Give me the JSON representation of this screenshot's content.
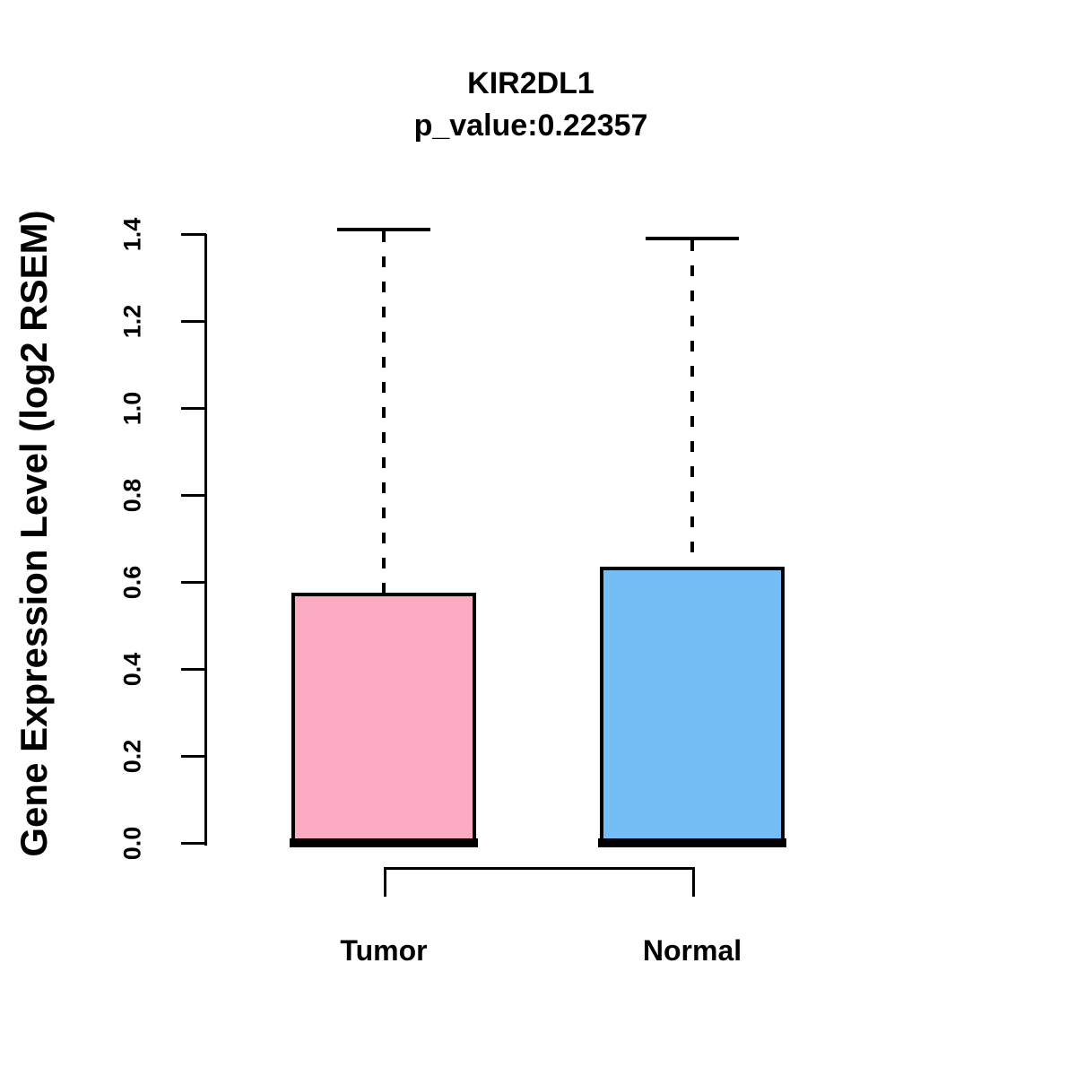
{
  "title": "KIR2DL1",
  "subtitle": "p_value:0.22357",
  "y_axis": {
    "label": "Gene Expression Level (log2 RSEM)",
    "tick_labels": [
      "0.0",
      "0.2",
      "0.4",
      "0.6",
      "0.8",
      "1.0",
      "1.2",
      "1.4"
    ],
    "tick_values": [
      0.0,
      0.2,
      0.4,
      0.6,
      0.8,
      1.0,
      1.2,
      1.4
    ]
  },
  "chart_data": {
    "type": "boxplot",
    "title": "KIR2DL1",
    "subtitle": "p_value:0.22357",
    "p_value": 0.22357,
    "ylabel": "Gene Expression Level (log2 RSEM)",
    "ylim": [
      0.0,
      1.4
    ],
    "grid": false,
    "categories": [
      "Tumor",
      "Normal"
    ],
    "series": [
      {
        "name": "Tumor",
        "min": 0.0,
        "q1": 0.0,
        "median": 0.0,
        "q3": 0.575,
        "max": 1.41,
        "fill_color": "#FBACC2"
      },
      {
        "name": "Normal",
        "min": 0.0,
        "q1": 0.0,
        "median": 0.0,
        "q3": 0.635,
        "max": 1.39,
        "fill_color": "#75BEF5"
      }
    ],
    "comparison_bracket": {
      "from": "Tumor",
      "to": "Normal"
    },
    "line_color": "#000000"
  }
}
